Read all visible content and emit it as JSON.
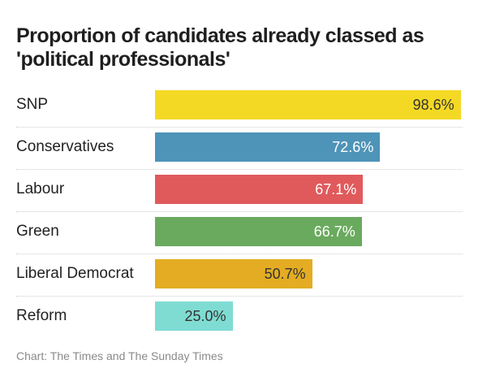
{
  "chart_data": {
    "type": "bar",
    "orientation": "horizontal",
    "title": "Proportion of candidates already classed as 'political professionals'",
    "source": "Chart: The Times and The Sunday Times",
    "xlim": [
      0,
      100
    ],
    "unit": "%",
    "grid": false,
    "legend": "none",
    "categories": [
      "SNP",
      "Conservatives",
      "Labour",
      "Green",
      "Liberal Democrat",
      "Reform"
    ],
    "values": [
      98.6,
      72.6,
      67.1,
      66.7,
      50.7,
      25.0
    ],
    "value_labels": [
      "98.6%",
      "72.6%",
      "67.1%",
      "66.7%",
      "50.7%",
      "25.0%"
    ],
    "colors": [
      "#f4d924",
      "#4e93b8",
      "#e05a5c",
      "#6aaa5e",
      "#e3ac22",
      "#7fdcd3"
    ],
    "label_colors": [
      "#333333",
      "#ffffff",
      "#ffffff",
      "#ffffff",
      "#333333",
      "#333333"
    ]
  }
}
